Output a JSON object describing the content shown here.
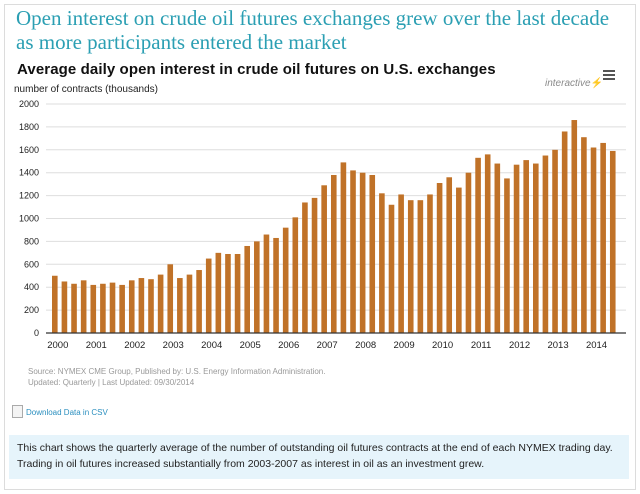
{
  "headline": "Open interest on crude oil futures exchanges grew over the last decade as more participants entered the market",
  "interactive_label": "interactive",
  "bolt_glyph": "⚡",
  "menu_icon": "hamburger-menu-icon",
  "source": "Source: NYMEX CME Group, Published by: U.S. Energy Information Administration.",
  "updated": "Updated: Quarterly | Last Updated: 09/30/2014",
  "download_label": "Download Data in CSV",
  "description": "This chart shows the quarterly average of the number of outstanding oil futures contracts at the end of each NYMEX trading day. Trading in oil futures increased substantially from 2003-2007 as interest in oil as an investment grew.",
  "colors": {
    "bar": "#c07228",
    "headline": "#2b9fb3",
    "desc_bg": "#e6f4fb"
  },
  "chart_data": {
    "type": "bar",
    "title": "Average daily open interest in crude oil futures on U.S. exchanges",
    "xlabel": "",
    "ylabel": "number of contracts (thousands)",
    "ylim": [
      0,
      2000
    ],
    "yticks": [
      0,
      200,
      400,
      600,
      800,
      1000,
      1200,
      1400,
      1600,
      1800,
      2000
    ],
    "xtick_labels": [
      "2000",
      "2001",
      "2002",
      "2003",
      "2004",
      "2005",
      "2006",
      "2007",
      "2008",
      "2009",
      "2010",
      "2011",
      "2012",
      "2013",
      "2014"
    ],
    "grid": true,
    "legend": "none",
    "categories": [
      "2000Q1",
      "2000Q2",
      "2000Q3",
      "2000Q4",
      "2001Q1",
      "2001Q2",
      "2001Q3",
      "2001Q4",
      "2002Q1",
      "2002Q2",
      "2002Q3",
      "2002Q4",
      "2003Q1",
      "2003Q2",
      "2003Q3",
      "2003Q4",
      "2004Q1",
      "2004Q2",
      "2004Q3",
      "2004Q4",
      "2005Q1",
      "2005Q2",
      "2005Q3",
      "2005Q4",
      "2006Q1",
      "2006Q2",
      "2006Q3",
      "2006Q4",
      "2007Q1",
      "2007Q2",
      "2007Q3",
      "2007Q4",
      "2008Q1",
      "2008Q2",
      "2008Q3",
      "2008Q4",
      "2009Q1",
      "2009Q2",
      "2009Q3",
      "2009Q4",
      "2010Q1",
      "2010Q2",
      "2010Q3",
      "2010Q4",
      "2011Q1",
      "2011Q2",
      "2011Q3",
      "2011Q4",
      "2012Q1",
      "2012Q2",
      "2012Q3",
      "2012Q4",
      "2013Q1",
      "2013Q2",
      "2013Q3",
      "2013Q4",
      "2014Q1",
      "2014Q2",
      "2014Q3"
    ],
    "values": [
      500,
      450,
      430,
      460,
      420,
      430,
      440,
      420,
      460,
      480,
      470,
      510,
      600,
      480,
      510,
      550,
      650,
      700,
      690,
      690,
      760,
      800,
      860,
      830,
      920,
      1010,
      1140,
      1180,
      1290,
      1380,
      1490,
      1420,
      1400,
      1380,
      1220,
      1120,
      1210,
      1160,
      1160,
      1210,
      1310,
      1360,
      1270,
      1400,
      1530,
      1560,
      1480,
      1350,
      1470,
      1510,
      1480,
      1550,
      1600,
      1760,
      1860,
      1710,
      1620,
      1660,
      1590
    ]
  }
}
